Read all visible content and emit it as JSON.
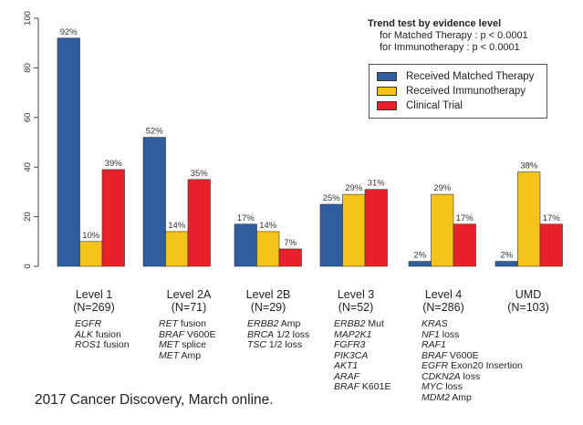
{
  "chart_data": {
    "type": "bar",
    "categories": [
      "Level 1",
      "Level 2A",
      "Level 2B",
      "Level 3",
      "Level 4",
      "UMD"
    ],
    "category_n": [
      "(N=269)",
      "(N=71)",
      "(N=29)",
      "(N=52)",
      "(N=286)",
      "(N=103)"
    ],
    "series": [
      {
        "name": "Received Matched Therapy",
        "color": "#2e5ea0",
        "values": [
          92,
          52,
          17,
          25,
          2,
          2
        ]
      },
      {
        "name": "Received Immunotherapy",
        "color": "#f6c31c",
        "values": [
          10,
          14,
          14,
          29,
          29,
          38
        ]
      },
      {
        "name": "Clinical Trial",
        "color": "#e8202a",
        "values": [
          39,
          35,
          7,
          31,
          17,
          17
        ]
      }
    ],
    "data_labels": [
      [
        "92%",
        "52%",
        "17%",
        "25%",
        "2%",
        "2%"
      ],
      [
        "10%",
        "14%",
        "14%",
        "29%",
        "29%",
        "38%"
      ],
      [
        "39%",
        "35%",
        "7%",
        "31%",
        "17%",
        "17%"
      ]
    ],
    "ylim": [
      0,
      100
    ],
    "yticks": [
      "0",
      "20",
      "40",
      "60",
      "80",
      "100"
    ],
    "grid": false,
    "legend_placement": "top-right"
  },
  "trend": {
    "title": "Trend test by evidence level",
    "line1": "for Matched Therapy : p < 0.0001",
    "line2": "for Immunotherapy : p < 0.0001"
  },
  "gene_lists": [
    [
      {
        "g": "EGFR",
        "s": ""
      },
      {
        "g": "ALK",
        "s": " fusion"
      },
      {
        "g": "ROS1",
        "s": " fusion"
      }
    ],
    [
      {
        "g": "RET",
        "s": " fusion"
      },
      {
        "g": "BRAF",
        "s": " V600E"
      },
      {
        "g": "MET",
        "s": " splice"
      },
      {
        "g": "MET",
        "s": " Amp"
      }
    ],
    [
      {
        "g": "ERBB2",
        "s": " Amp"
      },
      {
        "g": "BRCA",
        "s": " 1/2 loss"
      },
      {
        "g": "TSC",
        "s": " 1/2 loss"
      }
    ],
    [
      {
        "g": "ERBB2",
        "s": " Mut"
      },
      {
        "g": "MAP2K1",
        "s": ""
      },
      {
        "g": "FGFR3",
        "s": ""
      },
      {
        "g": "PIK3CA",
        "s": ""
      },
      {
        "g": "AKT1",
        "s": ""
      },
      {
        "g": "ARAF",
        "s": ""
      },
      {
        "g": "BRAF",
        "s": " K601E"
      }
    ],
    [
      {
        "g": "KRAS",
        "s": ""
      },
      {
        "g": "NF1",
        "s": " loss"
      },
      {
        "g": "RAF1",
        "s": ""
      },
      {
        "g": "BRAF",
        "s": " V600E"
      },
      {
        "g": "EGFR",
        "s": " Exon20 Insertion"
      },
      {
        "g": "CDKN2A",
        "s": " loss"
      },
      {
        "g": "MYC",
        "s": " loss"
      },
      {
        "g": "MDM2",
        "s": " Amp"
      }
    ],
    []
  ],
  "citation": "2017 Cancer Discovery, March online."
}
